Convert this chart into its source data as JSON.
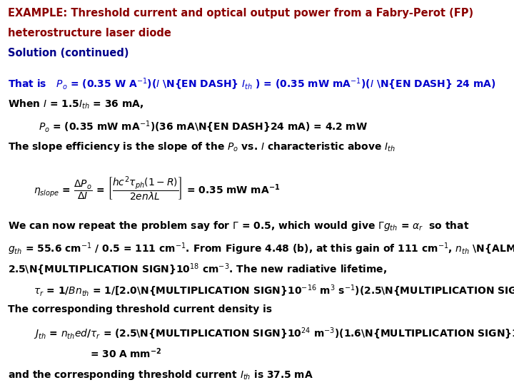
{
  "title_line1": "EXAMPLE: Threshold current and optical output power from a Fabry-Perot (FP)",
  "title_line2": "heterostructure laser diode",
  "title_line3": "Solution (continued)",
  "title_color": "#8B0000",
  "solution_color": "#00008B",
  "bg_color": "#FFFFFF",
  "body_color": "#000000",
  "blue_color": "#0000CD",
  "fig_width": 7.2,
  "fig_height": 5.4,
  "fs_title": 10.5,
  "fs_body": 10.0
}
